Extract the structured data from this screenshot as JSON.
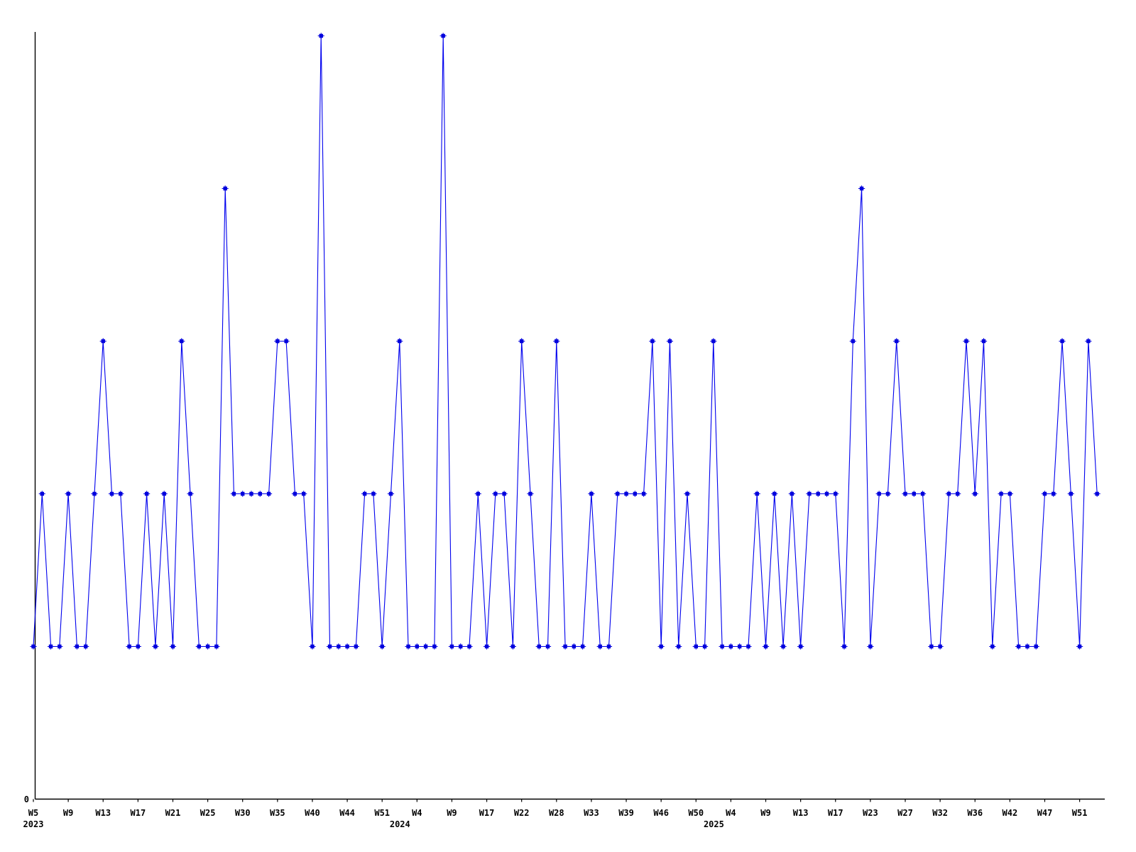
{
  "chart_data": {
    "type": "line",
    "title": "",
    "description": "Weekly event-count time series, one point per week with data, integer values 1-5, baseline 0 shown on y-axis",
    "legend": "none",
    "grid": "off",
    "background_color": "#ffffff",
    "axis_color": "#000000",
    "line_color": "#0000ee",
    "marker_color": "#0000dd",
    "marker_shape": "square-plus",
    "y_axis": {
      "zero_label": "0",
      "min": 0,
      "max_visible": 5,
      "tick_labels_shown": [
        "0"
      ]
    },
    "x_axis": {
      "tick_every_n_points": 4,
      "tick_labels": [
        "W5",
        "W9",
        "W13",
        "W17",
        "W21",
        "W25",
        "W30",
        "W35",
        "W40",
        "W44",
        "W51",
        "W4",
        "W9",
        "W17",
        "W22",
        "W28",
        "W33",
        "W39",
        "W46",
        "W50",
        "W4",
        "W9",
        "W13",
        "W17",
        "W23",
        "W27",
        "W32",
        "W36",
        "W42",
        "W47",
        "W51"
      ],
      "year_labels": [
        {
          "text": "2023",
          "tick_index": 0
        },
        {
          "text": "2024",
          "tick_index": 11
        },
        {
          "text": "2025",
          "tick_index": 20
        }
      ]
    },
    "values": [
      1,
      2,
      1,
      1,
      2,
      1,
      1,
      2,
      3,
      2,
      2,
      1,
      1,
      2,
      1,
      2,
      1,
      3,
      2,
      1,
      1,
      1,
      4,
      2,
      2,
      2,
      2,
      2,
      3,
      3,
      2,
      2,
      1,
      5,
      1,
      1,
      1,
      1,
      2,
      2,
      1,
      2,
      3,
      1,
      1,
      1,
      1,
      5,
      1,
      1,
      1,
      2,
      1,
      2,
      2,
      1,
      3,
      2,
      1,
      1,
      3,
      1,
      1,
      1,
      2,
      1,
      1,
      2,
      2,
      2,
      2,
      3,
      1,
      3,
      1,
      2,
      1,
      1,
      3,
      1,
      1,
      1,
      1,
      2,
      1,
      2,
      1,
      2,
      1,
      2,
      2,
      2,
      2,
      1,
      3,
      4,
      1,
      2,
      2,
      3,
      2,
      2,
      2,
      1,
      1,
      2,
      2,
      3,
      2,
      3,
      1,
      2,
      2,
      1,
      1,
      1,
      2,
      2,
      3,
      2,
      1,
      3,
      2
    ]
  }
}
